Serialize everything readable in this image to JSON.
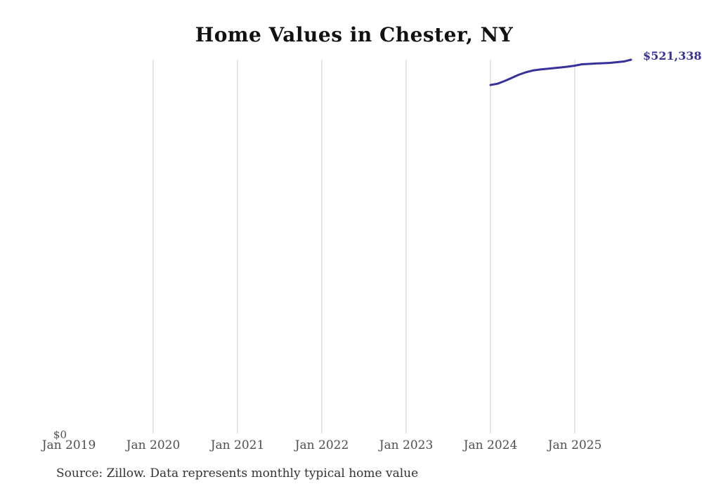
{
  "chart_data": {
    "type": "line",
    "title": "Home Values in Chester, NY",
    "source": "Source: Zillow. Data represents monthly typical home value",
    "y_zero_label": "$0",
    "end_label": "$521,338",
    "ylim": [
      0,
      521338
    ],
    "grid": "vertical-only",
    "legend": "none",
    "x_ticks": [
      {
        "label": "Jan 2019",
        "month": 0,
        "gridline": false
      },
      {
        "label": "Jan 2020",
        "month": 12,
        "gridline": true
      },
      {
        "label": "Jan 2021",
        "month": 24,
        "gridline": true
      },
      {
        "label": "Jan 2022",
        "month": 36,
        "gridline": true
      },
      {
        "label": "Jan 2023",
        "month": 48,
        "gridline": true
      },
      {
        "label": "Jan 2024",
        "month": 60,
        "gridline": true
      },
      {
        "label": "Jan 2025",
        "month": 72,
        "gridline": true
      }
    ],
    "series": [
      {
        "name": "Typical home value",
        "start_month": 60,
        "x": [
          "Jan 2024",
          "Feb 2024",
          "Mar 2024",
          "Apr 2024",
          "May 2024",
          "Jun 2024",
          "Jul 2024",
          "Aug 2024",
          "Sep 2024",
          "Oct 2024",
          "Nov 2024",
          "Dec 2024",
          "Jan 2025",
          "Feb 2025",
          "Mar 2025",
          "Apr 2025",
          "May 2025",
          "Jun 2025",
          "Jul 2025",
          "Aug 2025",
          "Sep 2025"
        ],
        "values": [
          486100,
          487800,
          491500,
          495900,
          500300,
          503700,
          506200,
          507600,
          508600,
          509600,
          510600,
          511600,
          513000,
          515000,
          515500,
          516000,
          516400,
          516900,
          517900,
          518900,
          521338
        ]
      }
    ],
    "colors": {
      "line": "#37329b",
      "end_label": "#37329b",
      "gridline": "#cccccc",
      "axis_text": "#4f4f4f",
      "title_text": "#111111",
      "source_text": "#333333"
    }
  }
}
